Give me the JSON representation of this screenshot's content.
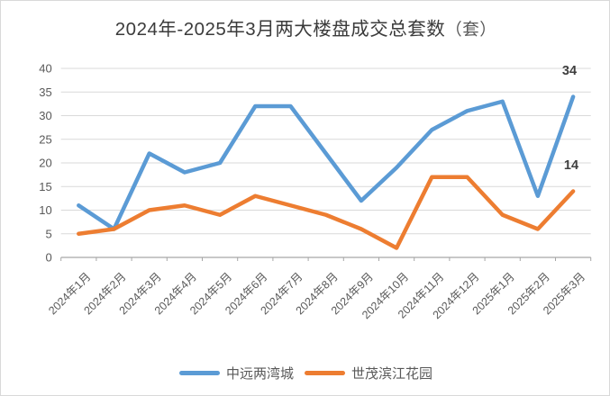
{
  "title": {
    "main": "2024年-2025年3月两大楼盘成交总套数",
    "unit": "（套）"
  },
  "chart_data": {
    "type": "line",
    "title": "2024年-2025年3月两大楼盘成交总套数（套）",
    "categories": [
      "2024年1月",
      "2024年2月",
      "2024年3月",
      "2024年4月",
      "2024年5月",
      "2024年6月",
      "2024年7月",
      "2024年8月",
      "2024年9月",
      "2024年10月",
      "2024年11月",
      "2024年12月",
      "2025年1月",
      "2025年2月",
      "2025年3月"
    ],
    "series": [
      {
        "name": "中远两湾城",
        "color": "#5B9BD5",
        "values": [
          11,
          6,
          22,
          18,
          20,
          32,
          32,
          22,
          12,
          19,
          27,
          31,
          33,
          13,
          34
        ]
      },
      {
        "name": "世茂滨江花园",
        "color": "#ED7D31",
        "values": [
          5,
          6,
          10,
          11,
          9,
          13,
          11,
          9,
          6,
          2,
          17,
          17,
          9,
          6,
          14
        ]
      }
    ],
    "ylim": [
      0,
      40
    ],
    "ytick_step": 5,
    "y_tick_labels": [
      "0",
      "5",
      "10",
      "15",
      "20",
      "25",
      "30",
      "35",
      "40"
    ],
    "grid": true,
    "legend_position": "bottom",
    "annotations": [
      {
        "text": "34",
        "series": "中远两湾城",
        "category": "2025年3月",
        "value": 34
      },
      {
        "text": "14",
        "series": "世茂滨江花园",
        "category": "2025年3月",
        "value": 14
      }
    ],
    "text_color": "#595959",
    "gridline_color": "#d9d9d9",
    "axis_color": "#a6a6a6"
  }
}
